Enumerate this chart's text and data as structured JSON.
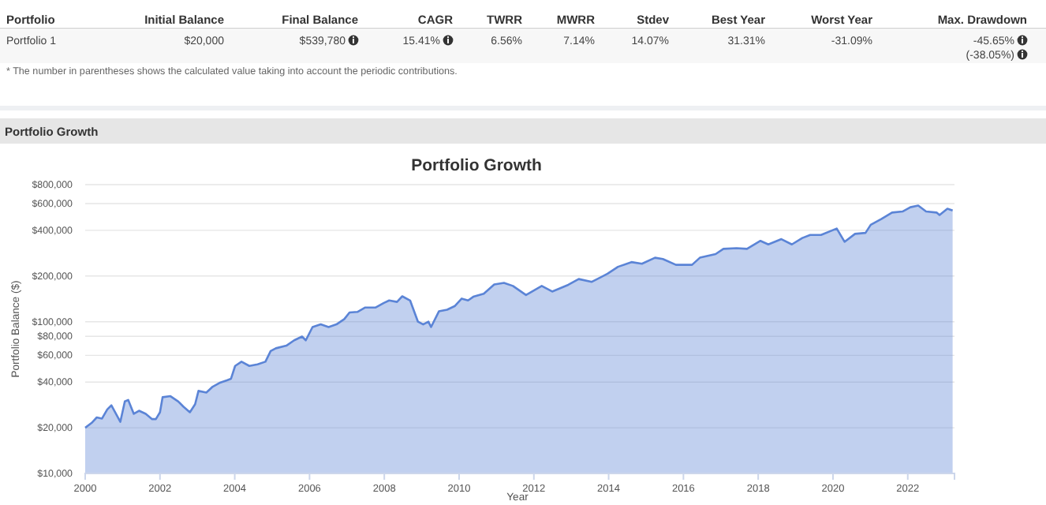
{
  "chart_data": [
    {
      "type": "other",
      "annotations": [
        "Portfolio",
        "Initial Balance",
        "Final Balance",
        "CAGR",
        "TWRR",
        "MWRR",
        "Stdev",
        "Best Year",
        "Worst Year",
        "Max. Drawdown",
        "Portfolio 1",
        "$20,000",
        "$539,780",
        "15.41%",
        "6.56%",
        "7.14%",
        "14.07%",
        "31.31%",
        "-31.09%",
        "-45.65%",
        "(-38.05%)",
        "* The number in parentheses shows the calculated value taking into account the periodic contributions."
      ]
    },
    {
      "type": "area",
      "title": "Portfolio Growth",
      "annotations": [
        "Portfolio Growth"
      ],
      "xlabel": "Year",
      "ylabel": "Portfolio Balance ($)",
      "log": "y",
      "grid": "y",
      "marker": "none",
      "xlim": [
        2000,
        2023.25
      ],
      "xticks": [
        2000,
        2002,
        2004,
        2006,
        2008,
        2010,
        2012,
        2014,
        2016,
        2018,
        2020,
        2022
      ],
      "ylim": [
        10000,
        800000
      ],
      "yticks": [
        {
          "value": 10000,
          "label": "$10,000"
        },
        {
          "value": 20000,
          "label": "$20,000"
        },
        {
          "value": 40000,
          "label": "$40,000"
        },
        {
          "value": 60000,
          "label": "$60,000"
        },
        {
          "value": 80000,
          "label": "$80,000"
        },
        {
          "value": 100000,
          "label": "$100,000"
        },
        {
          "value": 200000,
          "label": "$200,000"
        },
        {
          "value": 400000,
          "label": "$400,000"
        },
        {
          "value": 600000,
          "label": "$600,000"
        },
        {
          "value": 800000,
          "label": "$800,000"
        }
      ],
      "series": [
        {
          "color": "#5b84d6",
          "x": [
            2000,
            2000.17,
            2000.31,
            2000.45,
            2000.59,
            2000.7,
            2000.8,
            2000.94,
            2001.06,
            2001.15,
            2001.3,
            2001.44,
            2001.62,
            2001.79,
            2001.89,
            2002,
            2002.07,
            2002.28,
            2002.49,
            2002.63,
            2002.8,
            2002.94,
            2003.03,
            2003.24,
            2003.41,
            2003.59,
            2003.79,
            2003.9,
            2004.01,
            2004.18,
            2004.39,
            2004.61,
            2004.82,
            2004.96,
            2005.1,
            2005.38,
            2005.59,
            2005.8,
            2005.9,
            2006.08,
            2006.3,
            2006.51,
            2006.72,
            2006.93,
            2007.07,
            2007.28,
            2007.49,
            2007.77,
            2007.99,
            2008.13,
            2008.34,
            2008.48,
            2008.69,
            2008.9,
            2009.04,
            2009.18,
            2009.25,
            2009.46,
            2009.68,
            2009.89,
            2010.07,
            2010.24,
            2010.38,
            2010.66,
            2010.94,
            2011.2,
            2011.44,
            2011.79,
            2012.21,
            2012.49,
            2012.92,
            2013.2,
            2013.55,
            2013.97,
            2014.25,
            2014.61,
            2014.89,
            2015.24,
            2015.45,
            2015.8,
            2016.23,
            2016.44,
            2016.86,
            2017.07,
            2017.42,
            2017.7,
            2018.06,
            2018.27,
            2018.62,
            2018.9,
            2019.18,
            2019.39,
            2019.68,
            2020.1,
            2020.31,
            2020.59,
            2020.87,
            2021.01,
            2021.3,
            2021.58,
            2021.86,
            2022.07,
            2022.28,
            2022.49,
            2022.77,
            2022.85,
            2023.06,
            2023.2
          ],
          "values": [
            20000,
            21500,
            23400,
            23000,
            26400,
            28100,
            25300,
            21900,
            29800,
            30500,
            24700,
            25900,
            24700,
            22800,
            22800,
            25300,
            31800,
            32300,
            29800,
            27500,
            25300,
            28600,
            35000,
            34100,
            37300,
            39500,
            41100,
            42100,
            51100,
            54500,
            51100,
            52400,
            54500,
            64100,
            66800,
            69500,
            75400,
            79800,
            75400,
            92200,
            96000,
            92200,
            96000,
            104000,
            115000,
            116000,
            124000,
            124000,
            133000,
            138000,
            135000,
            147000,
            138000,
            100000,
            96000,
            100000,
            92200,
            117000,
            120000,
            127000,
            142000,
            138000,
            146000,
            153000,
            176000,
            180000,
            172000,
            150000,
            172000,
            158000,
            175000,
            191000,
            183000,
            207000,
            230000,
            247000,
            241000,
            264000,
            259000,
            237000,
            237000,
            264000,
            279000,
            302000,
            305000,
            302000,
            341000,
            323000,
            350000,
            323000,
            356000,
            373000,
            373000,
            411000,
            336000,
            379000,
            385000,
            435000,
            476000,
            524000,
            532000,
            568000,
            582000,
            532000,
            524000,
            504000,
            555000,
            540000
          ]
        }
      ]
    }
  ]
}
